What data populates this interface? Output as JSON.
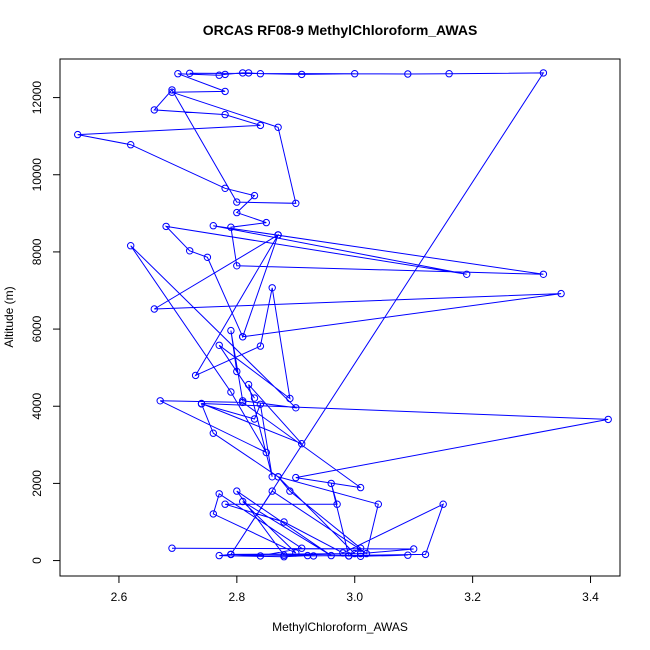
{
  "chart_data": {
    "type": "line",
    "title": "ORCAS RF08-9 MethylChloroform_AWAS",
    "xlabel": "MethylChloroform_AWAS",
    "ylabel": "Altitude (m)",
    "xlim": [
      2.5,
      3.45
    ],
    "ylim": [
      -400,
      13000
    ],
    "xticks": [
      "2.6",
      "2.8",
      "3.0",
      "3.2",
      "3.4"
    ],
    "yticks": [
      "0",
      "2000",
      "4000",
      "6000",
      "8000",
      "10000",
      "12000"
    ],
    "grid": false,
    "marker": "open-circle",
    "series_color": "#0000ff",
    "series": [
      {
        "points": [
          [
            2.69,
            320
          ],
          [
            3.1,
            300
          ],
          [
            3.01,
            180
          ],
          [
            2.79,
            160
          ],
          [
            2.93,
            120
          ],
          [
            3.12,
            160
          ],
          [
            3.15,
            1460
          ],
          [
            2.98,
            200
          ],
          [
            2.88,
            1000
          ],
          [
            2.78,
            1460
          ],
          [
            2.97,
            1460
          ],
          [
            2.96,
            2000
          ],
          [
            2.99,
            120
          ],
          [
            3.01,
            320
          ],
          [
            2.89,
            1800
          ],
          [
            2.87,
            2170
          ],
          [
            3.04,
            1460
          ],
          [
            3.02,
            180
          ],
          [
            2.86,
            1800
          ],
          [
            2.79,
            160
          ],
          [
            2.84,
            120
          ],
          [
            2.91,
            320
          ],
          [
            2.77,
            1730
          ],
          [
            2.76,
            1210
          ],
          [
            2.9,
            200
          ],
          [
            2.81,
            1530
          ],
          [
            2.96,
            130
          ],
          [
            2.8,
            1800
          ],
          [
            2.88,
            140
          ],
          [
            3.0,
            180
          ],
          [
            2.87,
            2170
          ],
          [
            2.76,
            3300
          ],
          [
            2.74,
            4060
          ],
          [
            2.83,
            3670
          ],
          [
            2.84,
            4050
          ],
          [
            2.86,
            2170
          ],
          [
            2.82,
            4560
          ],
          [
            2.91,
            3030
          ],
          [
            2.74,
            4070
          ],
          [
            3.43,
            3660
          ],
          [
            2.9,
            2150
          ],
          [
            3.01,
            1890
          ],
          [
            2.81,
            4100
          ],
          [
            2.67,
            4140
          ],
          [
            2.85,
            2800
          ],
          [
            2.79,
            4370
          ],
          [
            2.62,
            8160
          ],
          [
            2.9,
            3960
          ],
          [
            2.81,
            4140
          ],
          [
            2.79,
            5960
          ],
          [
            2.8,
            4900
          ],
          [
            2.83,
            4210
          ],
          [
            2.77,
            5580
          ],
          [
            2.89,
            4200
          ],
          [
            2.86,
            7070
          ],
          [
            2.84,
            5560
          ],
          [
            2.73,
            4800
          ],
          [
            2.87,
            8440
          ],
          [
            2.81,
            5800
          ],
          [
            3.35,
            6920
          ],
          [
            2.66,
            6520
          ],
          [
            2.87,
            8440
          ],
          [
            2.81,
            5800
          ],
          [
            2.75,
            7860
          ],
          [
            2.72,
            8030
          ],
          [
            2.68,
            8660
          ],
          [
            3.19,
            7420
          ],
          [
            2.76,
            8680
          ],
          [
            3.32,
            7420
          ],
          [
            2.8,
            7640
          ],
          [
            2.79,
            8640
          ],
          [
            2.85,
            8760
          ],
          [
            2.8,
            9020
          ],
          [
            2.83,
            9460
          ],
          [
            2.78,
            9650
          ],
          [
            2.62,
            10780
          ],
          [
            2.53,
            11040
          ],
          [
            2.84,
            11280
          ],
          [
            2.78,
            11560
          ],
          [
            2.66,
            11680
          ],
          [
            2.69,
            12200
          ],
          [
            2.8,
            9290
          ],
          [
            2.9,
            9260
          ],
          [
            2.87,
            11230
          ],
          [
            2.69,
            12140
          ],
          [
            2.78,
            12160
          ],
          [
            2.7,
            12620
          ],
          [
            2.77,
            12580
          ],
          [
            2.78,
            12600
          ],
          [
            2.81,
            12640
          ],
          [
            2.82,
            12640
          ],
          [
            2.84,
            12620
          ],
          [
            2.91,
            12600
          ],
          [
            3.0,
            12620
          ],
          [
            2.72,
            12630
          ],
          [
            3.09,
            12610
          ],
          [
            3.16,
            12620
          ],
          [
            3.32,
            12640
          ],
          [
            2.79,
            160
          ],
          [
            2.77,
            130
          ],
          [
            2.88,
            100
          ],
          [
            2.92,
            130
          ],
          [
            2.99,
            120
          ],
          [
            3.01,
            110
          ],
          [
            3.09,
            140
          ]
        ]
      }
    ]
  }
}
